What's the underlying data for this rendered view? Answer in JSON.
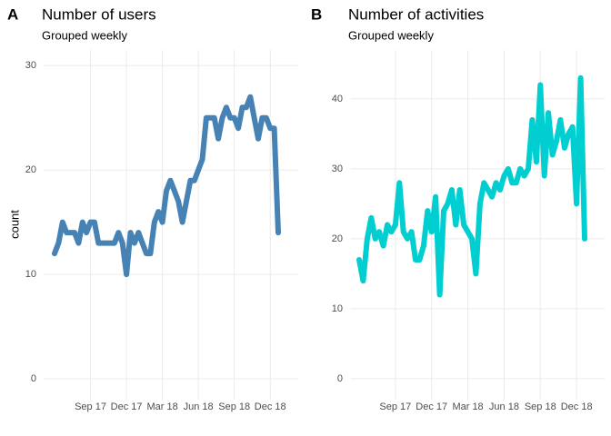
{
  "chart_data": [
    {
      "type": "line",
      "label": "A",
      "title": "Number of users",
      "subtitle": "Grouped weekly",
      "y_label": "count",
      "x": [
        "2017-06",
        "2017-06",
        "2017-06",
        "2017-07",
        "2017-07",
        "2017-07",
        "2017-08",
        "2017-08",
        "2017-08",
        "2017-09",
        "2017-09",
        "2017-09",
        "2017-10",
        "2017-10",
        "2017-10",
        "2017-11",
        "2017-11",
        "2017-11",
        "2017-12",
        "2017-12",
        "2017-12",
        "2018-01",
        "2018-01",
        "2018-01",
        "2018-02",
        "2018-02",
        "2018-02",
        "2018-03",
        "2018-03",
        "2018-03",
        "2018-04",
        "2018-04",
        "2018-04",
        "2018-05",
        "2018-05",
        "2018-05",
        "2018-06",
        "2018-06",
        "2018-06",
        "2018-07",
        "2018-07",
        "2018-07",
        "2018-08",
        "2018-08",
        "2018-08",
        "2018-09",
        "2018-09",
        "2018-09",
        "2018-10",
        "2018-10",
        "2018-10",
        "2018-11",
        "2018-11",
        "2018-11",
        "2018-12",
        "2018-12",
        "2018-12"
      ],
      "series": [
        {
          "name": "users",
          "color": "#4682b4",
          "values": [
            12,
            13,
            15,
            14,
            14,
            14,
            13,
            15,
            14,
            15,
            15,
            13,
            13,
            13,
            13,
            13,
            14,
            13,
            10,
            14,
            13,
            14,
            13,
            12,
            12,
            15,
            16,
            15,
            18,
            19,
            18,
            17,
            15,
            17,
            19,
            19,
            20,
            21,
            25,
            25,
            25,
            23,
            25,
            26,
            25,
            25,
            24,
            26,
            26,
            27,
            25,
            23,
            25,
            25,
            24,
            24,
            14
          ]
        }
      ],
      "xticks": [
        {
          "value": "2017-09",
          "label": "Sep 17"
        },
        {
          "value": "2017-12",
          "label": "Dec 17"
        },
        {
          "value": "2018-03",
          "label": "Mar 18"
        },
        {
          "value": "2018-06",
          "label": "Jun 18"
        },
        {
          "value": "2018-09",
          "label": "Sep 18"
        },
        {
          "value": "2018-12",
          "label": "Dec 18"
        }
      ],
      "ylim": [
        -2,
        31.5
      ],
      "yticks": [
        0,
        10,
        20,
        30
      ],
      "grid": true
    },
    {
      "type": "line",
      "label": "B",
      "title": "Number of activities",
      "subtitle": "Grouped weekly",
      "x": [
        "2017-06",
        "2017-06",
        "2017-06",
        "2017-07",
        "2017-07",
        "2017-07",
        "2017-08",
        "2017-08",
        "2017-08",
        "2017-09",
        "2017-09",
        "2017-09",
        "2017-10",
        "2017-10",
        "2017-10",
        "2017-11",
        "2017-11",
        "2017-11",
        "2017-12",
        "2017-12",
        "2017-12",
        "2018-01",
        "2018-01",
        "2018-01",
        "2018-02",
        "2018-02",
        "2018-02",
        "2018-03",
        "2018-03",
        "2018-03",
        "2018-04",
        "2018-04",
        "2018-04",
        "2018-05",
        "2018-05",
        "2018-05",
        "2018-06",
        "2018-06",
        "2018-06",
        "2018-07",
        "2018-07",
        "2018-07",
        "2018-08",
        "2018-08",
        "2018-08",
        "2018-09",
        "2018-09",
        "2018-09",
        "2018-10",
        "2018-10",
        "2018-10",
        "2018-11",
        "2018-11",
        "2018-11",
        "2018-12",
        "2018-12",
        "2018-12"
      ],
      "series": [
        {
          "name": "activities",
          "color": "#00ced1",
          "values": [
            17,
            14,
            20,
            23,
            20,
            21,
            19,
            22,
            21,
            22,
            28,
            21,
            20,
            21,
            17,
            17,
            19,
            24,
            21,
            26,
            12,
            24,
            25,
            27,
            22,
            27,
            22,
            21,
            20,
            15,
            25,
            28,
            27,
            26,
            28,
            27,
            29,
            30,
            28,
            28,
            30,
            29,
            30,
            37,
            31,
            42,
            29,
            38,
            32,
            34,
            37,
            33,
            35,
            36,
            25,
            43,
            20
          ]
        }
      ],
      "xticks": [
        {
          "value": "2017-09",
          "label": "Sep 17"
        },
        {
          "value": "2017-12",
          "label": "Dec 17"
        },
        {
          "value": "2018-03",
          "label": "Mar 18"
        },
        {
          "value": "2018-06",
          "label": "Jun 18"
        },
        {
          "value": "2018-09",
          "label": "Sep 18"
        },
        {
          "value": "2018-12",
          "label": "Dec 18"
        }
      ],
      "ylim": [
        -3,
        47
      ],
      "yticks": [
        0,
        10,
        20,
        30,
        40
      ],
      "grid": true
    }
  ]
}
